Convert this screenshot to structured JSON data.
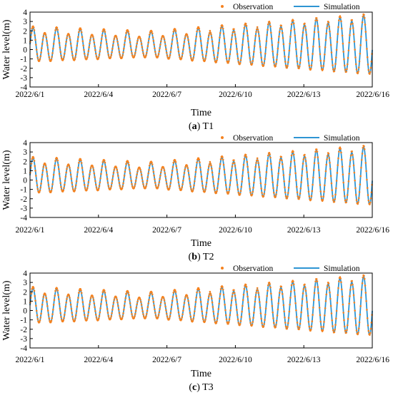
{
  "chart_data": [
    {
      "type": "line",
      "caption_label": "a",
      "caption_text": "T1",
      "xlabel": "Time",
      "ylabel": "Water level(m)",
      "xlim": [
        "2022/6/1",
        "2022/6/16"
      ],
      "ylim": [
        -4,
        4
      ],
      "x_ticks": [
        "2022/6/1",
        "2022/6/4",
        "2022/6/7",
        "2022/6/10",
        "2022/6/13",
        "2022/6/16"
      ],
      "y_ticks": [
        -4,
        -3,
        -2,
        -1,
        0,
        1,
        2,
        3,
        4
      ],
      "legend": [
        "Observation",
        "Simulation"
      ],
      "legend_position": "top-right",
      "tide": {
        "period_hours": 12.42,
        "mean": 0.4,
        "amplitude_start": 1.7,
        "amplitude_mid": 1.2,
        "mid_day": 5.2,
        "amplitude_end": 3.05,
        "obs_high_offset": 0.15
      }
    },
    {
      "type": "line",
      "caption_label": "b",
      "caption_text": "T2",
      "xlabel": "Time",
      "ylabel": "Water level(m)",
      "xlim": [
        "2022/6/1",
        "2022/6/16"
      ],
      "ylim": [
        -4,
        4
      ],
      "x_ticks": [
        "2022/6/1",
        "2022/6/4",
        "2022/6/7",
        "2022/6/10",
        "2022/6/13",
        "2022/6/16"
      ],
      "y_ticks": [
        -4,
        -3,
        -2,
        -1,
        0,
        1,
        2,
        3,
        4
      ],
      "legend": [
        "Observation",
        "Simulation"
      ],
      "legend_position": "top-right",
      "tide": {
        "period_hours": 12.42,
        "mean": 0.35,
        "amplitude_start": 1.75,
        "amplitude_mid": 1.2,
        "mid_day": 5.2,
        "amplitude_end": 3.0,
        "obs_high_offset": 0.15
      }
    },
    {
      "type": "line",
      "caption_label": "c",
      "caption_text": "T3",
      "xlabel": "Time",
      "ylabel": "Water level(m)",
      "xlim": [
        "2022/6/1",
        "2022/6/16"
      ],
      "ylim": [
        -4,
        4
      ],
      "x_ticks": [
        "2022/6/1",
        "2022/6/4",
        "2022/6/7",
        "2022/6/10",
        "2022/6/13",
        "2022/6/16"
      ],
      "y_ticks": [
        -4,
        -3,
        -2,
        -1,
        0,
        1,
        2,
        3,
        4
      ],
      "legend": [
        "Observation",
        "Simulation"
      ],
      "legend_position": "top-right",
      "tide": {
        "period_hours": 12.42,
        "mean": 0.4,
        "amplitude_start": 1.75,
        "amplitude_mid": 1.2,
        "mid_day": 5.2,
        "amplitude_end": 3.05,
        "obs_high_offset": 0.15
      }
    }
  ],
  "colors": {
    "observation": "#F5821F",
    "simulation": "#2E95D3",
    "axis": "#000000"
  }
}
